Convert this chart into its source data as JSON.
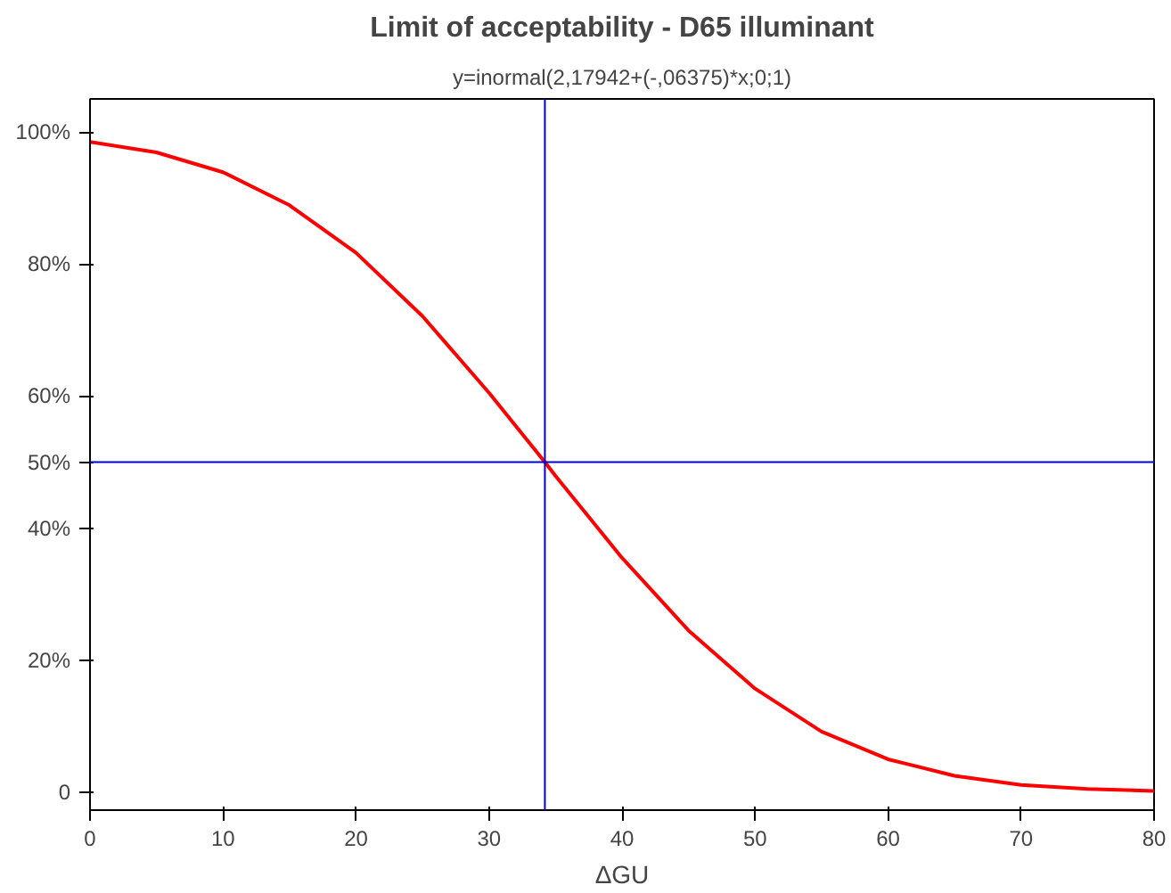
{
  "chart_data": {
    "type": "line",
    "title": "Limit of acceptability - D65 illuminant",
    "subtitle": "y=inormal(2,17942+(-,06375)*x;0;1)",
    "xlabel": "ΔGU",
    "x": [
      0,
      5,
      10,
      15,
      20,
      25,
      30,
      34.2,
      35,
      40,
      45,
      50,
      55,
      60,
      65,
      70,
      75,
      80
    ],
    "series": [
      {
        "color": "#ff0000",
        "values": [
          98.5,
          96.9,
          93.9,
          88.9,
          81.7,
          72.1,
          60.5,
          50,
          47.9,
          35.5,
          24.5,
          15.7,
          9.2,
          5,
          2.5,
          1.1,
          0.5,
          0.2
        ]
      }
    ],
    "xlim": [
      0,
      80
    ],
    "xticks": [
      0,
      10,
      20,
      30,
      40,
      50,
      60,
      70,
      80
    ],
    "ylim": [
      -2.7,
      105
    ],
    "yticks": [
      {
        "value": 0,
        "label": "0"
      },
      {
        "value": 20,
        "label": "20%"
      },
      {
        "value": 40,
        "label": "40%"
      },
      {
        "value": 50,
        "label": "50%"
      },
      {
        "value": 60,
        "label": "60%"
      },
      {
        "value": 80,
        "label": "80%"
      },
      {
        "value": 100,
        "label": "100%"
      }
    ],
    "ref_lines": [
      {
        "axis": "x",
        "value": 34.2,
        "color": "#0000cc"
      },
      {
        "axis": "y",
        "value": 50,
        "color": "#0000cc"
      }
    ],
    "grid": false,
    "marker": "none",
    "line_style": "solid"
  }
}
